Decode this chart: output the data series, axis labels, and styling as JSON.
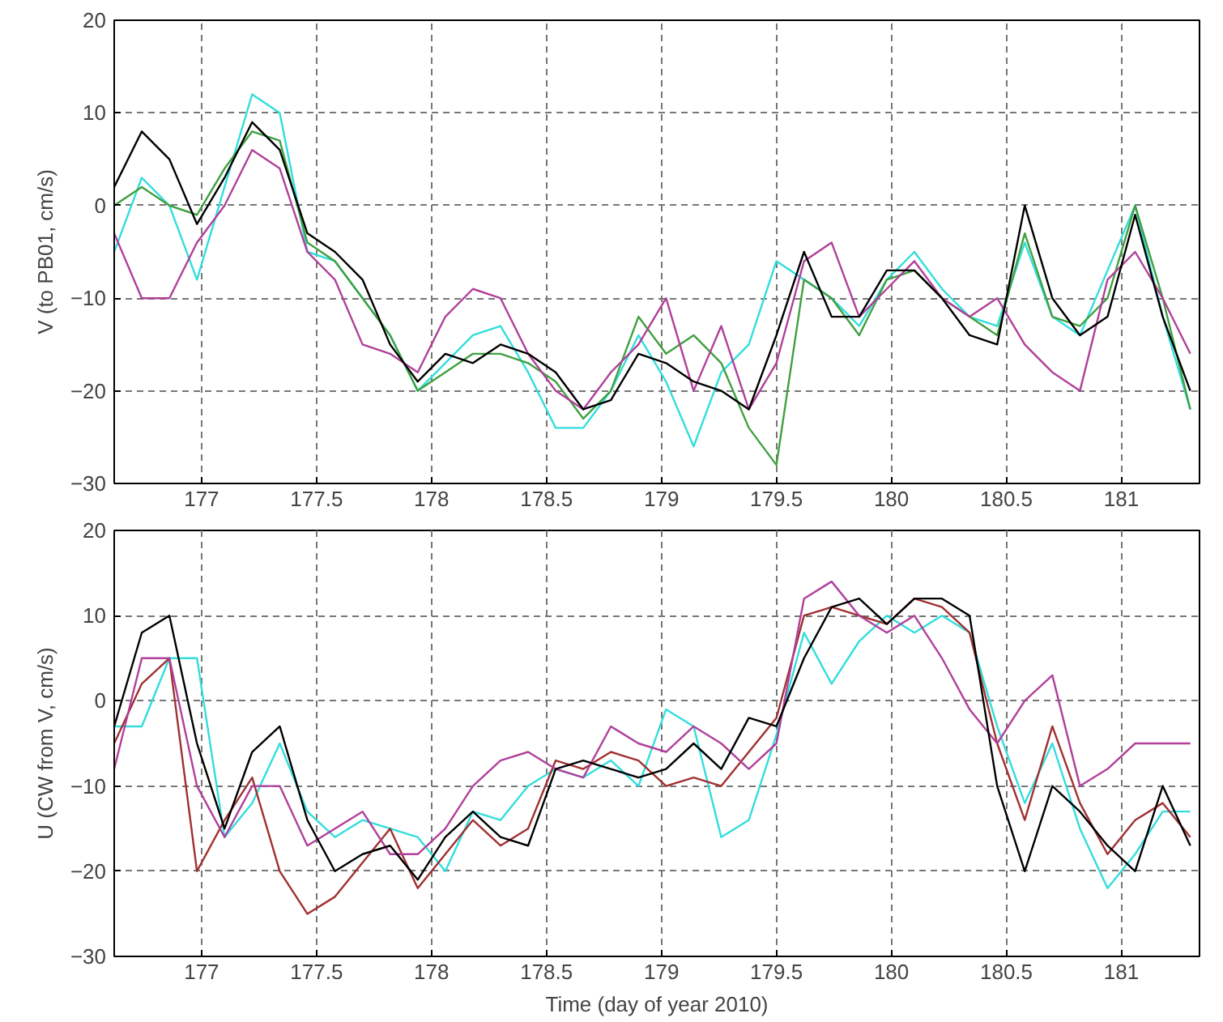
{
  "chart_data": [
    {
      "type": "line",
      "ylabel": "V (to PB01, cm/s)",
      "xlim": [
        176.62,
        181.34
      ],
      "ylim": [
        -30,
        20
      ],
      "xticks": [
        177,
        177.5,
        178,
        178.5,
        179,
        179.5,
        180,
        180.5,
        181
      ],
      "yticks": [
        -30,
        -20,
        -10,
        0,
        10,
        20
      ],
      "grid": true,
      "line_style": "solid",
      "x": [
        176.62,
        176.74,
        176.86,
        176.98,
        177.1,
        177.22,
        177.34,
        177.46,
        177.58,
        177.7,
        177.82,
        177.94,
        178.06,
        178.18,
        178.3,
        178.42,
        178.54,
        178.66,
        178.78,
        178.9,
        179.02,
        179.14,
        179.26,
        179.38,
        179.5,
        179.62,
        179.74,
        179.86,
        179.98,
        180.1,
        180.22,
        180.34,
        180.46,
        180.58,
        180.7,
        180.82,
        180.94,
        181.06,
        181.18,
        181.3
      ],
      "series": [
        {
          "color": "#33dddd",
          "values": [
            -5,
            3,
            0,
            -8,
            2,
            12,
            10,
            -5,
            -6,
            -10,
            -14,
            -20,
            -17,
            -14,
            -13,
            -18,
            -24,
            -24,
            -20,
            -14,
            -19,
            -26,
            -18,
            -15,
            -6,
            -8,
            -10,
            -13,
            -8,
            -5,
            -9,
            -12,
            -13,
            -4,
            -12,
            -14,
            -7,
            0,
            -12,
            -22
          ]
        },
        {
          "color": "#40a040",
          "values": [
            0,
            2,
            0,
            -1,
            4,
            8,
            7,
            -4,
            -6,
            -10,
            -14,
            -20,
            -18,
            -16,
            -16,
            -17,
            -19,
            -23,
            -20,
            -12,
            -16,
            -14,
            -17,
            -24,
            -28,
            -8,
            -10,
            -14,
            -8,
            -7,
            -10,
            -12,
            -14,
            -3,
            -12,
            -13,
            -10,
            0,
            -10,
            -22
          ]
        },
        {
          "color": "#b0409a",
          "values": [
            -3,
            -10,
            -10,
            -4,
            0,
            6,
            4,
            -5,
            -8,
            -15,
            -16,
            -18,
            -12,
            -9,
            -10,
            -16,
            -20,
            -22,
            -18,
            -15,
            -10,
            -20,
            -13,
            -22,
            -17,
            -6,
            -4,
            -12,
            -9,
            -6,
            -10,
            -12,
            -10,
            -15,
            -18,
            -20,
            -8,
            -5,
            -10,
            -16
          ]
        },
        {
          "color": "#000000",
          "values": [
            2,
            8,
            5,
            -2,
            3,
            9,
            6,
            -3,
            -5,
            -8,
            -15,
            -19,
            -16,
            -17,
            -15,
            -16,
            -18,
            -22,
            -21,
            -16,
            -17,
            -19,
            -20,
            -22,
            -14,
            -5,
            -12,
            -12,
            -7,
            -7,
            -10,
            -14,
            -15,
            0,
            -10,
            -14,
            -12,
            -1,
            -12,
            -20
          ]
        }
      ]
    },
    {
      "type": "line",
      "xlabel": "Time (day of year 2010)",
      "ylabel": "U (CW from V, cm/s)",
      "xlim": [
        176.62,
        181.34
      ],
      "ylim": [
        -30,
        20
      ],
      "xticks": [
        177,
        177.5,
        178,
        178.5,
        179,
        179.5,
        180,
        180.5,
        181
      ],
      "yticks": [
        -30,
        -20,
        -10,
        0,
        10,
        20
      ],
      "grid": true,
      "line_style": "solid",
      "x": [
        176.62,
        176.74,
        176.86,
        176.98,
        177.1,
        177.22,
        177.34,
        177.46,
        177.58,
        177.7,
        177.82,
        177.94,
        178.06,
        178.18,
        178.3,
        178.42,
        178.54,
        178.66,
        178.78,
        178.9,
        179.02,
        179.14,
        179.26,
        179.38,
        179.5,
        179.62,
        179.74,
        179.86,
        179.98,
        180.1,
        180.22,
        180.34,
        180.46,
        180.58,
        180.7,
        180.82,
        180.94,
        181.06,
        181.18,
        181.3
      ],
      "series": [
        {
          "color": "#33dddd",
          "values": [
            -3,
            -3,
            5,
            5,
            -16,
            -12,
            -5,
            -13,
            -16,
            -14,
            -15,
            -16,
            -20,
            -13,
            -14,
            -10,
            -8,
            -9,
            -7,
            -10,
            -1,
            -3,
            -16,
            -14,
            -4,
            8,
            2,
            7,
            10,
            8,
            10,
            8,
            -3,
            -12,
            -5,
            -15,
            -22,
            -18,
            -13,
            -13
          ]
        },
        {
          "color": "#a03030",
          "values": [
            -5,
            2,
            5,
            -20,
            -14,
            -9,
            -20,
            -25,
            -23,
            -19,
            -15,
            -22,
            -18,
            -14,
            -17,
            -15,
            -7,
            -8,
            -6,
            -7,
            -10,
            -9,
            -10,
            -6,
            -2,
            10,
            11,
            10,
            9,
            12,
            11,
            8,
            -5,
            -14,
            -3,
            -12,
            -18,
            -14,
            -12,
            -16
          ]
        },
        {
          "color": "#b0409a",
          "values": [
            -8,
            5,
            5,
            -10,
            -16,
            -10,
            -10,
            -17,
            -15,
            -13,
            -18,
            -18,
            -15,
            -10,
            -7,
            -6,
            -8,
            -9,
            -3,
            -5,
            -6,
            -3,
            -5,
            -8,
            -5,
            12,
            14,
            10,
            8,
            10,
            5,
            -1,
            -5,
            0,
            3,
            -10,
            -8,
            -5,
            -5,
            -5
          ]
        },
        {
          "color": "#000000",
          "values": [
            -3,
            8,
            10,
            -5,
            -15,
            -6,
            -3,
            -14,
            -20,
            -18,
            -17,
            -21,
            -16,
            -13,
            -16,
            -17,
            -8,
            -7,
            -8,
            -9,
            -8,
            -5,
            -8,
            -2,
            -3,
            5,
            11,
            12,
            9,
            12,
            12,
            10,
            -10,
            -20,
            -10,
            -13,
            -17,
            -20,
            -10,
            -17
          ]
        }
      ]
    }
  ]
}
